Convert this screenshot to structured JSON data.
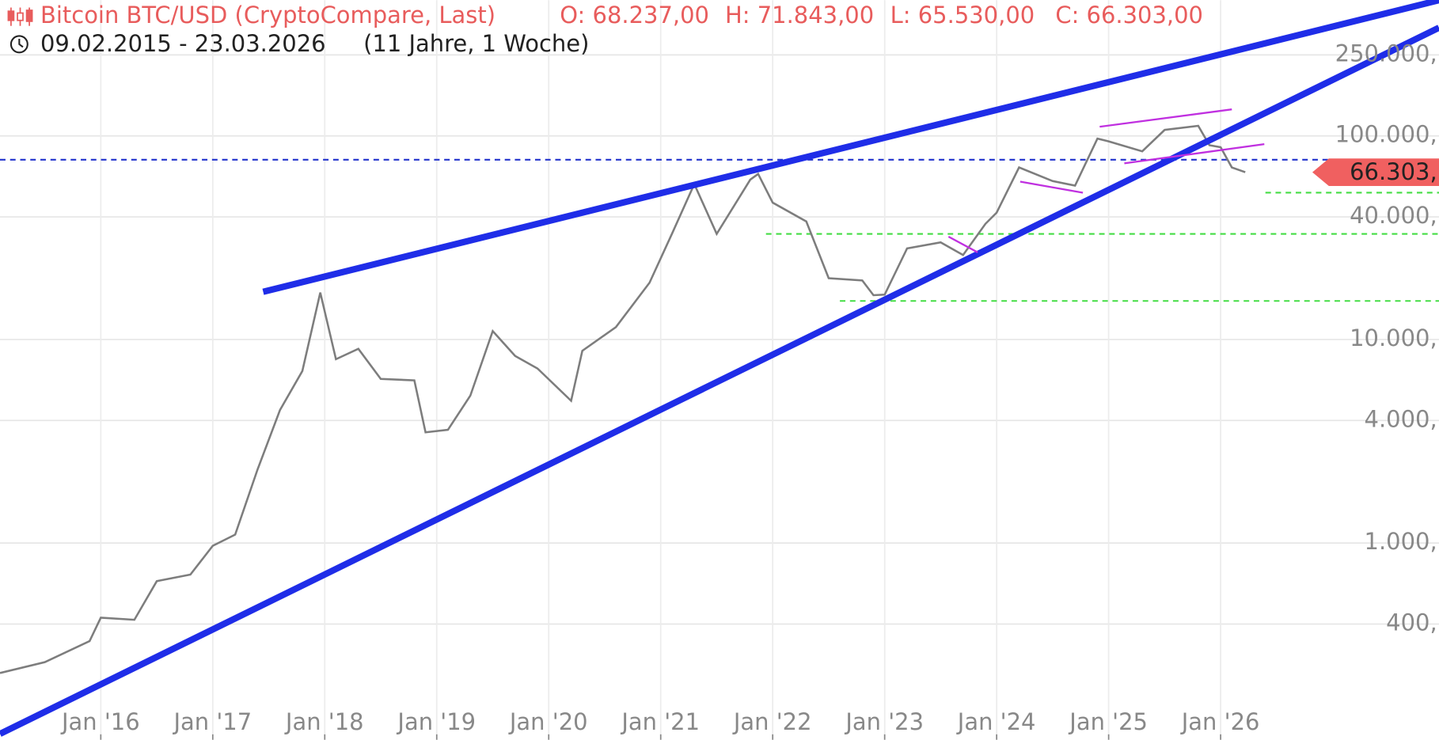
{
  "chart_data": {
    "type": "line",
    "title": "Bitcoin BTC/USD (CryptoCompare, Last)",
    "ohlc_labels": [
      "O: 68.237,00",
      "H: 71.843,00",
      "L: 65.530,00",
      "C: 66.303,00"
    ],
    "subtitle": "09.02.2015 - 23.03.2026",
    "period": "(11 Jahre, 1 Woche)",
    "log_scale": true,
    "grid": true,
    "xlim": [
      2015.1,
      2027.95
    ],
    "ylim": [
      115,
      464000
    ],
    "xticks": [
      {
        "value": 2016,
        "label": "Jan '16"
      },
      {
        "value": 2017,
        "label": "Jan '17"
      },
      {
        "value": 2018,
        "label": "Jan '18"
      },
      {
        "value": 2019,
        "label": "Jan '19"
      },
      {
        "value": 2020,
        "label": "Jan '20"
      },
      {
        "value": 2021,
        "label": "Jan '21"
      },
      {
        "value": 2022,
        "label": "Jan '22"
      },
      {
        "value": 2023,
        "label": "Jan '23"
      },
      {
        "value": 2024,
        "label": "Jan '24"
      },
      {
        "value": 2025,
        "label": "Jan '25"
      },
      {
        "value": 2026,
        "label": "Jan '26"
      }
    ],
    "yticks": [
      {
        "value": 250000,
        "label": "250.000,"
      },
      {
        "value": 100000,
        "label": "100.000,"
      },
      {
        "value": 40000,
        "label": "40.000,"
      },
      {
        "value": 10000,
        "label": "10.000,"
      },
      {
        "value": 4000,
        "label": "4.000,"
      },
      {
        "value": 1000,
        "label": "1.000,"
      },
      {
        "value": 400,
        "label": "400,"
      }
    ],
    "x": [
      2015.1,
      2015.5,
      2015.9,
      2016.0,
      2016.3,
      2016.5,
      2016.8,
      2017.0,
      2017.2,
      2017.4,
      2017.6,
      2017.8,
      2017.96,
      2018.1,
      2018.3,
      2018.5,
      2018.8,
      2018.9,
      2019.1,
      2019.3,
      2019.5,
      2019.7,
      2019.9,
      2020.2,
      2020.3,
      2020.6,
      2020.9,
      2021.1,
      2021.3,
      2021.5,
      2021.8,
      2021.87,
      2022.0,
      2022.3,
      2022.5,
      2022.8,
      2022.9,
      2023.0,
      2023.2,
      2023.5,
      2023.7,
      2023.9,
      2024.0,
      2024.2,
      2024.5,
      2024.7,
      2024.9,
      2025.0,
      2025.3,
      2025.5,
      2025.8,
      2025.9,
      2026.0,
      2026.1,
      2026.22
    ],
    "series": [
      {
        "name": "Bitcoin BTC/USD (CryptoCompare, Last)",
        "color": "#7d7d7d",
        "values": [
          230,
          260,
          330,
          430,
          420,
          650,
          700,
          970,
          1100,
          2300,
          4500,
          7000,
          17000,
          8000,
          9000,
          6400,
          6300,
          3500,
          3600,
          5300,
          11000,
          8300,
          7200,
          5000,
          8800,
          11500,
          19000,
          33000,
          58000,
          33000,
          61000,
          65000,
          47000,
          38000,
          20000,
          19500,
          16500,
          16600,
          28000,
          30000,
          26000,
          37000,
          42000,
          70000,
          60000,
          57000,
          97000,
          94000,
          84000,
          107000,
          112000,
          90000,
          88000,
          70000,
          66303
        ]
      }
    ],
    "last_value": 66303,
    "last_label": "66.303,",
    "last_color": "#f06060",
    "reference_lines": [
      {
        "value": 76400,
        "from": 2015.1,
        "color": "#2233cc"
      },
      {
        "value": 52600,
        "from": 2026.4,
        "color": "#44dd44"
      },
      {
        "value": 33000,
        "from": 2021.94,
        "color": "#44dd44"
      },
      {
        "value": 15460,
        "from": 2022.6,
        "color": "#44dd44"
      }
    ],
    "trendlines": [
      {
        "x": [
          2017.45,
          2027.95
        ],
        "y": [
          17140,
          464000
        ],
        "color": "#1f2de8",
        "width": 7
      },
      {
        "x": [
          2015.1,
          2027.95
        ],
        "y": [
          115.6,
          340000
        ],
        "color": "#1f2de8",
        "width": 7
      },
      {
        "x": [
          2024.92,
          2026.1
        ],
        "y": [
          110900,
          135000
        ],
        "color": "#c030e0",
        "width": 2
      },
      {
        "x": [
          2025.14,
          2026.39
        ],
        "y": [
          73300,
          91100
        ],
        "color": "#c030e0",
        "width": 2
      },
      {
        "x": [
          2024.21,
          2024.77
        ],
        "y": [
          59600,
          52600
        ],
        "color": "#c030e0",
        "width": 2
      },
      {
        "x": [
          2023.57,
          2023.83
        ],
        "y": [
          32000,
          26800
        ],
        "color": "#c030e0",
        "width": 2
      }
    ]
  }
}
